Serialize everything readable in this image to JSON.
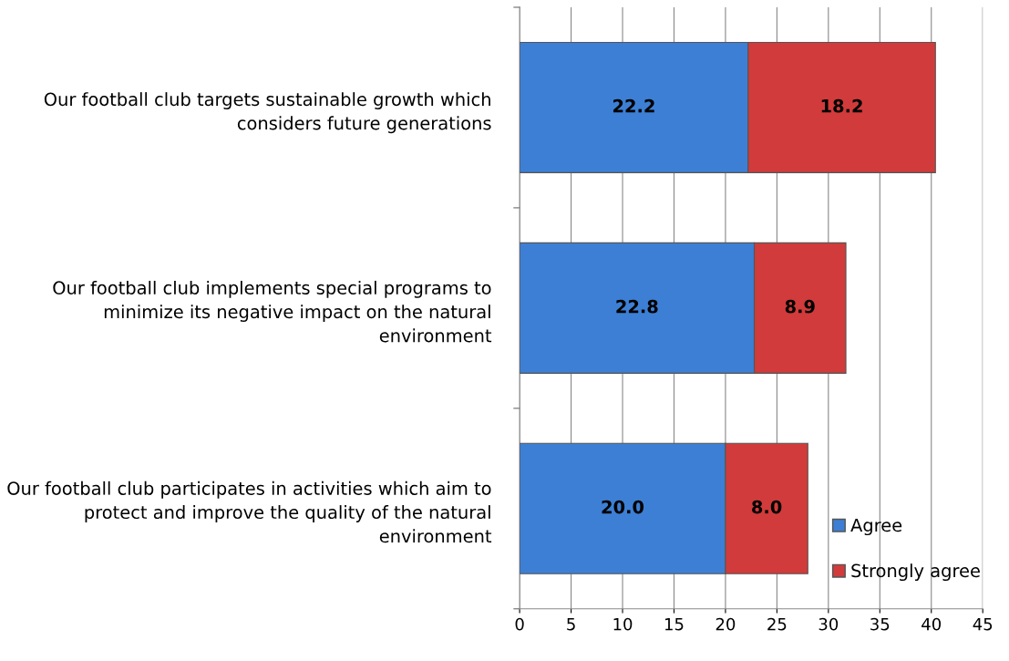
{
  "chart_data": {
    "type": "bar",
    "orientation": "horizontal",
    "stacked": true,
    "categories": [
      "Our football club targets sustainable growth which\nconsiders future generations",
      "Our football club implements special programs to\nminimize its negative impact on the natural\nenvironment",
      "Our football club participates in activities which aim to\nprotect and improve the quality of the natural\nenvironment"
    ],
    "series": [
      {
        "name": "Agree",
        "color": "#3d7fd4",
        "values": [
          22.2,
          22.8,
          20.0
        ],
        "value_labels": [
          "22.2",
          "22.8",
          "20.0"
        ]
      },
      {
        "name": "Strongly agree",
        "color": "#d13b3b",
        "values": [
          18.2,
          8.9,
          8.0
        ],
        "value_labels": [
          "18.2",
          "8.9",
          "8.0"
        ]
      }
    ],
    "xlim": [
      0,
      45
    ],
    "xticks": [
      0,
      5,
      10,
      15,
      20,
      25,
      30,
      35,
      40,
      45
    ],
    "grid": "x",
    "legend": "bottom right"
  }
}
